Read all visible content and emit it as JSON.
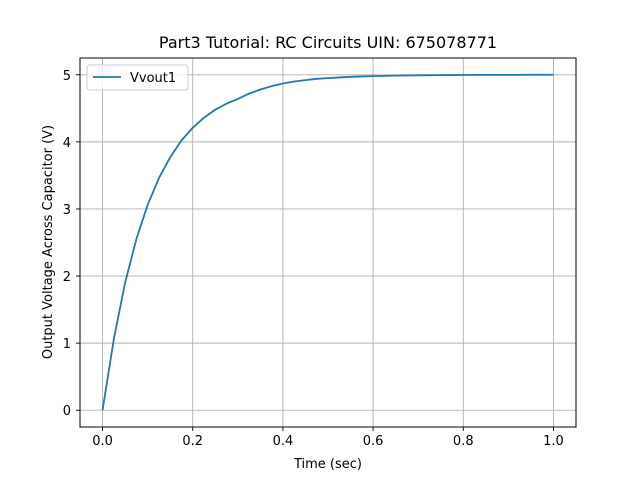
{
  "chart_data": {
    "type": "line",
    "title": "Part3 Tutorial: RC Circuits UIN: 675078771",
    "xlabel": "Time (sec)",
    "ylabel": "Output Voltage Across Capacitor (V)",
    "xlim": [
      -0.05,
      1.05
    ],
    "ylim": [
      -0.25,
      5.25
    ],
    "x_ticks": [
      0.0,
      0.2,
      0.4,
      0.6,
      0.8,
      1.0
    ],
    "x_tick_labels": [
      "0.0",
      "0.2",
      "0.4",
      "0.6",
      "0.8",
      "1.0"
    ],
    "y_ticks": [
      0,
      1,
      2,
      3,
      4,
      5
    ],
    "y_tick_labels": [
      "0",
      "1",
      "2",
      "3",
      "4",
      "5"
    ],
    "grid": true,
    "legend_position": "upper-left",
    "series": [
      {
        "name": "Vvout1",
        "color": "#1f77b4",
        "x": [
          0.0,
          0.025,
          0.05,
          0.075,
          0.1,
          0.125,
          0.15,
          0.175,
          0.2,
          0.225,
          0.25,
          0.275,
          0.3,
          0.325,
          0.35,
          0.375,
          0.4,
          0.425,
          0.45,
          0.475,
          0.5,
          0.525,
          0.55,
          0.575,
          0.6,
          0.625,
          0.65,
          0.675,
          0.7,
          0.725,
          0.75,
          0.775,
          0.8,
          0.825,
          0.85,
          0.875,
          0.9,
          0.925,
          0.95,
          0.975,
          1.0
        ],
        "y": [
          0.0,
          1.06,
          1.9,
          2.55,
          3.06,
          3.46,
          3.77,
          4.02,
          4.21,
          4.36,
          4.48,
          4.57,
          4.64,
          4.72,
          4.78,
          4.83,
          4.87,
          4.9,
          4.92,
          4.94,
          4.95,
          4.96,
          4.97,
          4.975,
          4.98,
          4.984,
          4.987,
          4.99,
          4.992,
          4.994,
          4.995,
          4.996,
          4.997,
          4.998,
          4.998,
          4.999,
          4.999,
          4.999,
          5.0,
          5.0,
          5.0
        ]
      }
    ]
  }
}
